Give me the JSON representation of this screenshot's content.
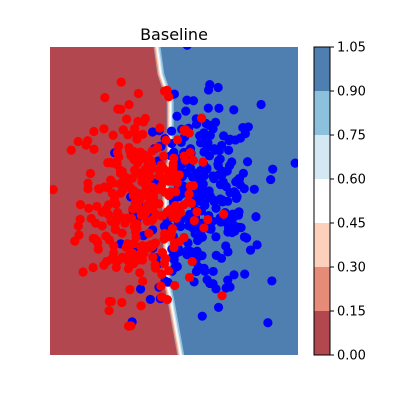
{
  "chart_data": {
    "type": "scatter",
    "title": "Baseline",
    "xlabel": "",
    "ylabel": "",
    "xlim": [
      -3.2,
      3.4
    ],
    "ylim": [
      -3.4,
      3.4
    ],
    "axes_visible": false,
    "background": {
      "type": "filled-contour",
      "description_source": "classifier probability, left region ~0, right region ~1",
      "boundary_x": [
        {
          "y": 3.4,
          "x": -0.45
        },
        {
          "y": 2.8,
          "x": -0.35
        },
        {
          "y": 2.2,
          "x": -0.1
        },
        {
          "y": 0.9,
          "x": -0.1
        },
        {
          "y": 0.4,
          "x": -0.22
        },
        {
          "y": -0.3,
          "x": -0.22
        },
        {
          "y": -1.8,
          "x": -0.18
        },
        {
          "y": -2.2,
          "x": -0.08
        },
        {
          "y": -3.4,
          "x": 0.18
        }
      ],
      "left_color": "#b2474f",
      "right_color": "#4f7fb1"
    },
    "series": [
      {
        "name": "",
        "color": "#ff0000",
        "points": []
      },
      {
        "name": "",
        "color": "#0000ff",
        "points": []
      }
    ],
    "colorbar": {
      "ticks": [
        "0.00",
        "0.15",
        "0.30",
        "0.45",
        "0.60",
        "0.75",
        "0.90",
        "1.05"
      ],
      "values": [
        0.0,
        0.15,
        0.3,
        0.45,
        0.6,
        0.75,
        0.9,
        1.05
      ],
      "colors": [
        "#b2474f",
        "#e58b78",
        "#fcd0bb",
        "#ffffff",
        "#d3e8f2",
        "#8cc1de",
        "#4f7fb1"
      ]
    },
    "red_point_count": 300,
    "blue_point_count": 300
  }
}
